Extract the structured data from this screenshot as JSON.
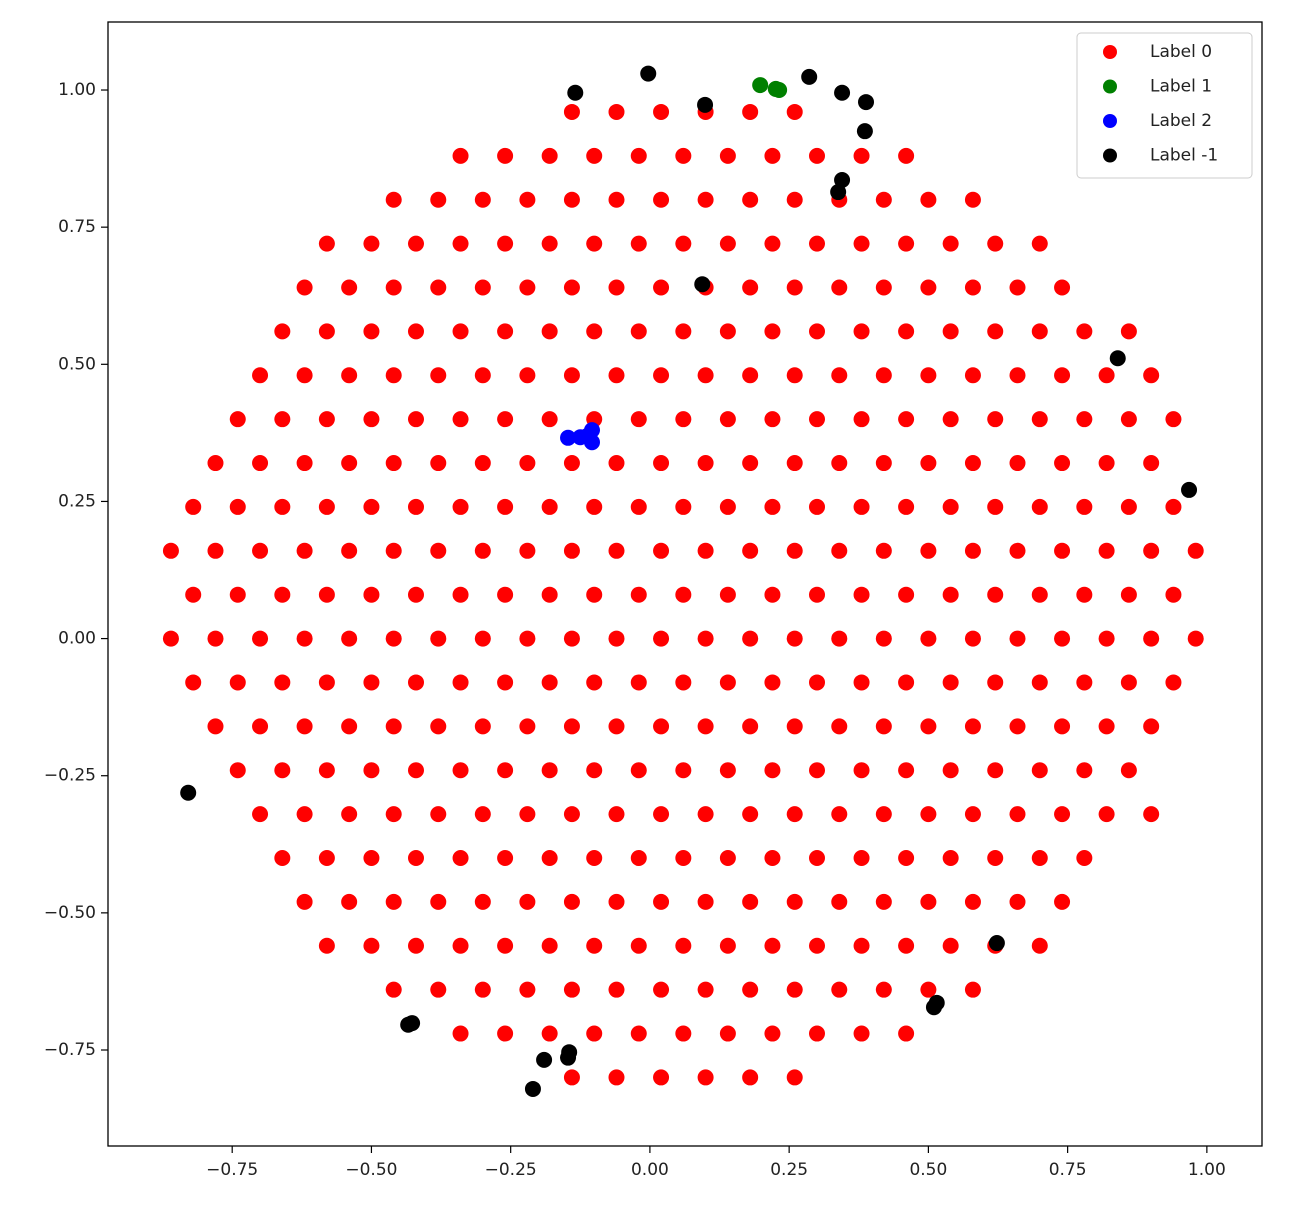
{
  "chart_data": {
    "type": "scatter",
    "xlim": [
      -0.973,
      1.099
    ],
    "ylim": [
      -0.925,
      1.124
    ],
    "xticks": [
      {
        "value": -0.75,
        "label": "−0.75"
      },
      {
        "value": -0.5,
        "label": "−0.50"
      },
      {
        "value": -0.25,
        "label": "−0.25"
      },
      {
        "value": 0,
        "label": "0.00"
      },
      {
        "value": 0.25,
        "label": "0.25"
      },
      {
        "value": 0.5,
        "label": "0.50"
      },
      {
        "value": 0.75,
        "label": "0.75"
      },
      {
        "value": 1,
        "label": "1.00"
      }
    ],
    "yticks": [
      {
        "value": -0.75,
        "label": "−0.75"
      },
      {
        "value": -0.5,
        "label": "−0.50"
      },
      {
        "value": -0.25,
        "label": "−0.25"
      },
      {
        "value": 0,
        "label": "0.00"
      },
      {
        "value": 0.25,
        "label": "0.25"
      },
      {
        "value": 0.5,
        "label": "0.50"
      },
      {
        "value": 0.75,
        "label": "0.75"
      },
      {
        "value": 1,
        "label": "1.00"
      }
    ],
    "legend": "upper right",
    "series": [
      {
        "name": "Label 0",
        "color": "#ff0000",
        "x": [
          -0.14,
          -0.06,
          0.02,
          0.1,
          0.18,
          0.26,
          -0.34,
          -0.26,
          -0.18,
          -0.1,
          -0.02,
          0.06,
          0.14,
          0.22,
          0.3,
          0.38,
          0.46,
          -0.46,
          -0.38,
          -0.3,
          -0.22,
          -0.14,
          -0.06,
          0.02,
          0.1,
          0.18,
          0.26,
          0.34,
          0.42,
          0.5,
          0.58,
          -0.58,
          -0.5,
          -0.42,
          -0.34,
          -0.26,
          -0.18,
          -0.1,
          -0.02,
          0.06,
          0.14,
          0.22,
          0.3,
          0.38,
          0.46,
          0.54,
          0.62,
          0.7,
          -0.62,
          -0.54,
          -0.46,
          -0.38,
          -0.3,
          -0.22,
          -0.14,
          -0.06,
          0.02,
          0.1,
          0.18,
          0.26,
          0.34,
          0.42,
          0.5,
          0.58,
          0.66,
          0.74,
          -0.66,
          -0.58,
          -0.5,
          -0.42,
          -0.34,
          -0.26,
          -0.18,
          -0.1,
          -0.02,
          0.06,
          0.14,
          0.22,
          0.3,
          0.38,
          0.46,
          0.54,
          0.62,
          0.7,
          0.78,
          0.86,
          -0.7,
          -0.62,
          -0.54,
          -0.46,
          -0.38,
          -0.3,
          -0.22,
          -0.14,
          -0.06,
          0.02,
          0.1,
          0.18,
          0.26,
          0.34,
          0.42,
          0.5,
          0.58,
          0.66,
          0.74,
          0.82,
          0.9,
          -0.74,
          -0.66,
          -0.58,
          -0.5,
          -0.42,
          -0.34,
          -0.26,
          -0.18,
          -0.1,
          -0.02,
          0.06,
          0.14,
          0.22,
          0.3,
          0.38,
          0.46,
          0.54,
          0.62,
          0.7,
          0.78,
          0.86,
          0.94,
          -0.78,
          -0.7,
          -0.62,
          -0.54,
          -0.46,
          -0.38,
          -0.3,
          -0.22,
          -0.14,
          -0.06,
          0.02,
          0.1,
          0.18,
          0.26,
          0.34,
          0.42,
          0.5,
          0.58,
          0.66,
          0.74,
          0.82,
          0.9,
          -0.82,
          -0.74,
          -0.66,
          -0.58,
          -0.5,
          -0.42,
          -0.34,
          -0.26,
          -0.18,
          -0.1,
          -0.02,
          0.06,
          0.14,
          0.22,
          0.3,
          0.38,
          0.46,
          0.54,
          0.62,
          0.7,
          0.78,
          0.86,
          0.94,
          -0.86,
          -0.78,
          -0.7,
          -0.62,
          -0.54,
          -0.46,
          -0.38,
          -0.3,
          -0.22,
          -0.14,
          -0.06,
          0.02,
          0.1,
          0.18,
          0.26,
          0.34,
          0.42,
          0.5,
          0.58,
          0.66,
          0.74,
          0.82,
          0.9,
          0.98,
          -0.82,
          -0.74,
          -0.66,
          -0.58,
          -0.5,
          -0.42,
          -0.34,
          -0.26,
          -0.18,
          -0.1,
          -0.02,
          0.06,
          0.14,
          0.22,
          0.3,
          0.38,
          0.46,
          0.54,
          0.62,
          0.7,
          0.78,
          0.86,
          0.94,
          -0.86,
          -0.78,
          -0.7,
          -0.62,
          -0.54,
          -0.46,
          -0.38,
          -0.3,
          -0.22,
          -0.14,
          -0.06,
          0.02,
          0.1,
          0.18,
          0.26,
          0.34,
          0.42,
          0.5,
          0.58,
          0.66,
          0.74,
          0.82,
          0.9,
          0.98,
          -0.82,
          -0.74,
          -0.66,
          -0.58,
          -0.5,
          -0.42,
          -0.34,
          -0.26,
          -0.18,
          -0.1,
          -0.02,
          0.06,
          0.14,
          0.22,
          0.3,
          0.38,
          0.46,
          0.54,
          0.62,
          0.7,
          0.78,
          0.86,
          0.94,
          -0.78,
          -0.7,
          -0.62,
          -0.54,
          -0.46,
          -0.38,
          -0.3,
          -0.22,
          -0.14,
          -0.06,
          0.02,
          0.1,
          0.18,
          0.26,
          0.34,
          0.42,
          0.5,
          0.58,
          0.66,
          0.74,
          0.82,
          0.9,
          -0.74,
          -0.66,
          -0.58,
          -0.5,
          -0.42,
          -0.34,
          -0.26,
          -0.18,
          -0.1,
          -0.02,
          0.06,
          0.14,
          0.22,
          0.3,
          0.38,
          0.46,
          0.54,
          0.62,
          0.7,
          0.78,
          0.86,
          -0.7,
          -0.62,
          -0.54,
          -0.46,
          -0.38,
          -0.3,
          -0.22,
          -0.14,
          -0.06,
          0.02,
          0.1,
          0.18,
          0.26,
          0.34,
          0.42,
          0.5,
          0.58,
          0.66,
          0.74,
          0.82,
          0.9,
          -0.66,
          -0.58,
          -0.5,
          -0.42,
          -0.34,
          -0.26,
          -0.18,
          -0.1,
          -0.02,
          0.06,
          0.14,
          0.22,
          0.3,
          0.38,
          0.46,
          0.54,
          0.62,
          0.7,
          0.78,
          -0.62,
          -0.54,
          -0.46,
          -0.38,
          -0.3,
          -0.22,
          -0.14,
          -0.06,
          0.02,
          0.1,
          0.18,
          0.26,
          0.34,
          0.42,
          0.5,
          0.58,
          0.66,
          0.74,
          -0.58,
          -0.5,
          -0.42,
          -0.34,
          -0.26,
          -0.18,
          -0.1,
          -0.02,
          0.06,
          0.14,
          0.22,
          0.3,
          0.38,
          0.46,
          0.54,
          0.62,
          0.7,
          -0.46,
          -0.38,
          -0.3,
          -0.22,
          -0.14,
          -0.06,
          0.02,
          0.1,
          0.18,
          0.26,
          0.34,
          0.42,
          0.5,
          0.58,
          -0.34,
          -0.26,
          -0.18,
          -0.1,
          -0.02,
          0.06,
          0.14,
          0.22,
          0.3,
          0.38,
          0.46,
          -0.14,
          -0.06,
          0.02,
          0.1,
          0.18,
          0.26
        ],
        "values": [
          0.96,
          0.96,
          0.96,
          0.96,
          0.96,
          0.96,
          0.88,
          0.88,
          0.88,
          0.88,
          0.88,
          0.88,
          0.88,
          0.88,
          0.88,
          0.88,
          0.88,
          0.8,
          0.8,
          0.8,
          0.8,
          0.8,
          0.8,
          0.8,
          0.8,
          0.8,
          0.8,
          0.8,
          0.8,
          0.8,
          0.8,
          0.72,
          0.72,
          0.72,
          0.72,
          0.72,
          0.72,
          0.72,
          0.72,
          0.72,
          0.72,
          0.72,
          0.72,
          0.72,
          0.72,
          0.72,
          0.72,
          0.72,
          0.64,
          0.64,
          0.64,
          0.64,
          0.64,
          0.64,
          0.64,
          0.64,
          0.64,
          0.64,
          0.64,
          0.64,
          0.64,
          0.64,
          0.64,
          0.64,
          0.64,
          0.64,
          0.56,
          0.56,
          0.56,
          0.56,
          0.56,
          0.56,
          0.56,
          0.56,
          0.56,
          0.56,
          0.56,
          0.56,
          0.56,
          0.56,
          0.56,
          0.56,
          0.56,
          0.56,
          0.56,
          0.56,
          0.48,
          0.48,
          0.48,
          0.48,
          0.48,
          0.48,
          0.48,
          0.48,
          0.48,
          0.48,
          0.48,
          0.48,
          0.48,
          0.48,
          0.48,
          0.48,
          0.48,
          0.48,
          0.48,
          0.48,
          0.48,
          0.4,
          0.4,
          0.4,
          0.4,
          0.4,
          0.4,
          0.4,
          0.4,
          0.4,
          0.4,
          0.4,
          0.4,
          0.4,
          0.4,
          0.4,
          0.4,
          0.4,
          0.4,
          0.4,
          0.4,
          0.4,
          0.4,
          0.32,
          0.32,
          0.32,
          0.32,
          0.32,
          0.32,
          0.32,
          0.32,
          0.32,
          0.32,
          0.32,
          0.32,
          0.32,
          0.32,
          0.32,
          0.32,
          0.32,
          0.32,
          0.32,
          0.32,
          0.32,
          0.32,
          0.24,
          0.24,
          0.24,
          0.24,
          0.24,
          0.24,
          0.24,
          0.24,
          0.24,
          0.24,
          0.24,
          0.24,
          0.24,
          0.24,
          0.24,
          0.24,
          0.24,
          0.24,
          0.24,
          0.24,
          0.24,
          0.24,
          0.24,
          0.16,
          0.16,
          0.16,
          0.16,
          0.16,
          0.16,
          0.16,
          0.16,
          0.16,
          0.16,
          0.16,
          0.16,
          0.16,
          0.16,
          0.16,
          0.16,
          0.16,
          0.16,
          0.16,
          0.16,
          0.16,
          0.16,
          0.16,
          0.16,
          0.08,
          0.08,
          0.08,
          0.08,
          0.08,
          0.08,
          0.08,
          0.08,
          0.08,
          0.08,
          0.08,
          0.08,
          0.08,
          0.08,
          0.08,
          0.08,
          0.08,
          0.08,
          0.08,
          0.08,
          0.08,
          0.08,
          0.08,
          0.0,
          0.0,
          0.0,
          0.0,
          0.0,
          0.0,
          0.0,
          0.0,
          0.0,
          0.0,
          0.0,
          0.0,
          0.0,
          0.0,
          0.0,
          0.0,
          0.0,
          0.0,
          0.0,
          0.0,
          0.0,
          0.0,
          0.0,
          0.0,
          -0.08,
          -0.08,
          -0.08,
          -0.08,
          -0.08,
          -0.08,
          -0.08,
          -0.08,
          -0.08,
          -0.08,
          -0.08,
          -0.08,
          -0.08,
          -0.08,
          -0.08,
          -0.08,
          -0.08,
          -0.08,
          -0.08,
          -0.08,
          -0.08,
          -0.08,
          -0.08,
          -0.16,
          -0.16,
          -0.16,
          -0.16,
          -0.16,
          -0.16,
          -0.16,
          -0.16,
          -0.16,
          -0.16,
          -0.16,
          -0.16,
          -0.16,
          -0.16,
          -0.16,
          -0.16,
          -0.16,
          -0.16,
          -0.16,
          -0.16,
          -0.16,
          -0.16,
          -0.24,
          -0.24,
          -0.24,
          -0.24,
          -0.24,
          -0.24,
          -0.24,
          -0.24,
          -0.24,
          -0.24,
          -0.24,
          -0.24,
          -0.24,
          -0.24,
          -0.24,
          -0.24,
          -0.24,
          -0.24,
          -0.24,
          -0.24,
          -0.24,
          -0.32,
          -0.32,
          -0.32,
          -0.32,
          -0.32,
          -0.32,
          -0.32,
          -0.32,
          -0.32,
          -0.32,
          -0.32,
          -0.32,
          -0.32,
          -0.32,
          -0.32,
          -0.32,
          -0.32,
          -0.32,
          -0.32,
          -0.32,
          -0.32,
          -0.4,
          -0.4,
          -0.4,
          -0.4,
          -0.4,
          -0.4,
          -0.4,
          -0.4,
          -0.4,
          -0.4,
          -0.4,
          -0.4,
          -0.4,
          -0.4,
          -0.4,
          -0.4,
          -0.4,
          -0.4,
          -0.4,
          -0.48,
          -0.48,
          -0.48,
          -0.48,
          -0.48,
          -0.48,
          -0.48,
          -0.48,
          -0.48,
          -0.48,
          -0.48,
          -0.48,
          -0.48,
          -0.48,
          -0.48,
          -0.48,
          -0.48,
          -0.48,
          -0.56,
          -0.56,
          -0.56,
          -0.56,
          -0.56,
          -0.56,
          -0.56,
          -0.56,
          -0.56,
          -0.56,
          -0.56,
          -0.56,
          -0.56,
          -0.56,
          -0.56,
          -0.56,
          -0.56,
          -0.64,
          -0.64,
          -0.64,
          -0.64,
          -0.64,
          -0.64,
          -0.64,
          -0.64,
          -0.64,
          -0.64,
          -0.64,
          -0.64,
          -0.64,
          -0.64,
          -0.72,
          -0.72,
          -0.72,
          -0.72,
          -0.72,
          -0.72,
          -0.72,
          -0.72,
          -0.72,
          -0.72,
          -0.72,
          -0.8,
          -0.8,
          -0.8,
          -0.8,
          -0.8,
          -0.8
        ]
      },
      {
        "name": "Label 1",
        "color": "#008000",
        "x": [
          0.198,
          0.226,
          0.232
        ],
        "values": [
          1.009,
          1.002,
          1.0
        ]
      },
      {
        "name": "Label 2",
        "color": "#0000ff",
        "x": [
          -0.147,
          -0.125,
          -0.104,
          -0.104,
          -0.113
        ],
        "values": [
          0.366,
          0.367,
          0.38,
          0.358,
          0.369
        ]
      },
      {
        "name": "Label -1",
        "color": "#000000",
        "x": [
          -0.134,
          -0.003,
          0.099,
          0.286,
          0.345,
          0.388,
          0.386,
          0.345,
          0.338,
          0.094,
          0.84,
          0.968,
          -0.829,
          0.623,
          0.515,
          0.51,
          -0.427,
          -0.434,
          -0.19,
          -0.145,
          -0.147,
          -0.21
        ],
        "values": [
          0.995,
          1.03,
          0.973,
          1.024,
          0.995,
          0.978,
          0.925,
          0.836,
          0.814,
          0.646,
          0.511,
          0.271,
          -0.281,
          -0.555,
          -0.664,
          -0.672,
          -0.701,
          -0.704,
          -0.768,
          -0.754,
          -0.764,
          -0.821
        ]
      }
    ]
  }
}
